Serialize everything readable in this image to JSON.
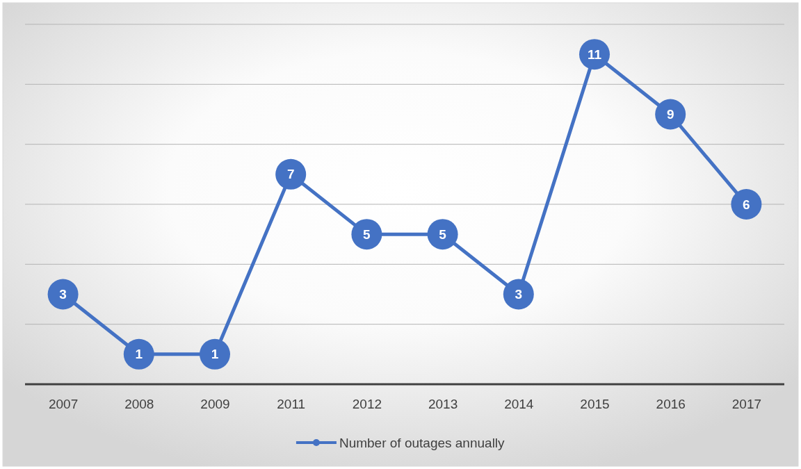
{
  "chart_data": {
    "type": "line",
    "categories": [
      "2007",
      "2008",
      "2009",
      "2011",
      "2012",
      "2013",
      "2014",
      "2015",
      "2016",
      "2017"
    ],
    "series": [
      {
        "name": "Number of outages annually",
        "color": "#4472c4",
        "values": [
          3,
          1,
          1,
          7,
          5,
          5,
          3,
          11,
          9,
          6
        ]
      }
    ],
    "ylim": [
      0,
      12
    ],
    "yticks": [
      {
        "value": 0,
        "label": null
      },
      {
        "value": 2,
        "label": null
      },
      {
        "value": 4,
        "label": null
      },
      {
        "value": 6,
        "label": null
      },
      {
        "value": 8,
        "label": null
      },
      {
        "value": 10,
        "label": null
      },
      {
        "value": 12,
        "label": null
      }
    ],
    "tick_labels": "x",
    "grid": "y",
    "legend": "bottom",
    "marker": "circle",
    "line_style": "solid",
    "data_labels": true
  }
}
